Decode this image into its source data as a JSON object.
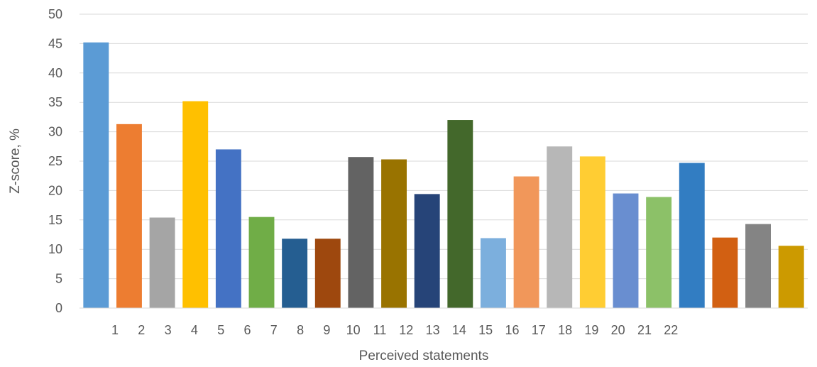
{
  "chart_data": {
    "type": "bar",
    "xlabel": "Perceived statements",
    "ylabel": "Z-score, %",
    "ylim": [
      0,
      50
    ],
    "yticks": [
      0,
      5,
      10,
      15,
      20,
      25,
      30,
      35,
      40,
      45,
      50
    ],
    "grid": true,
    "legend": "none",
    "categories": [
      "1",
      "2",
      "3",
      "4",
      "5",
      "6",
      "7",
      "8",
      "9",
      "10",
      "11",
      "12",
      "13",
      "14",
      "15",
      "16",
      "17",
      "18",
      "19",
      "20",
      "21",
      "22"
    ],
    "values": [
      45.2,
      31.3,
      15.4,
      35.2,
      27.0,
      15.5,
      11.8,
      11.8,
      25.7,
      25.3,
      19.4,
      32.0,
      11.9,
      22.4,
      27.5,
      25.8,
      19.5,
      18.9,
      24.7,
      12.0,
      14.3,
      10.6
    ],
    "colors": [
      "#5b9bd5",
      "#ed7d31",
      "#a5a5a5",
      "#ffc000",
      "#4472c4",
      "#70ad47",
      "#255e91",
      "#9e480e",
      "#636363",
      "#997300",
      "#264478",
      "#43682b",
      "#7cafdd",
      "#f1975a",
      "#b7b7b7",
      "#ffcd33",
      "#698ed0",
      "#8cc168",
      "#327dc2",
      "#d26012",
      "#848484",
      "#cc9a00"
    ]
  }
}
